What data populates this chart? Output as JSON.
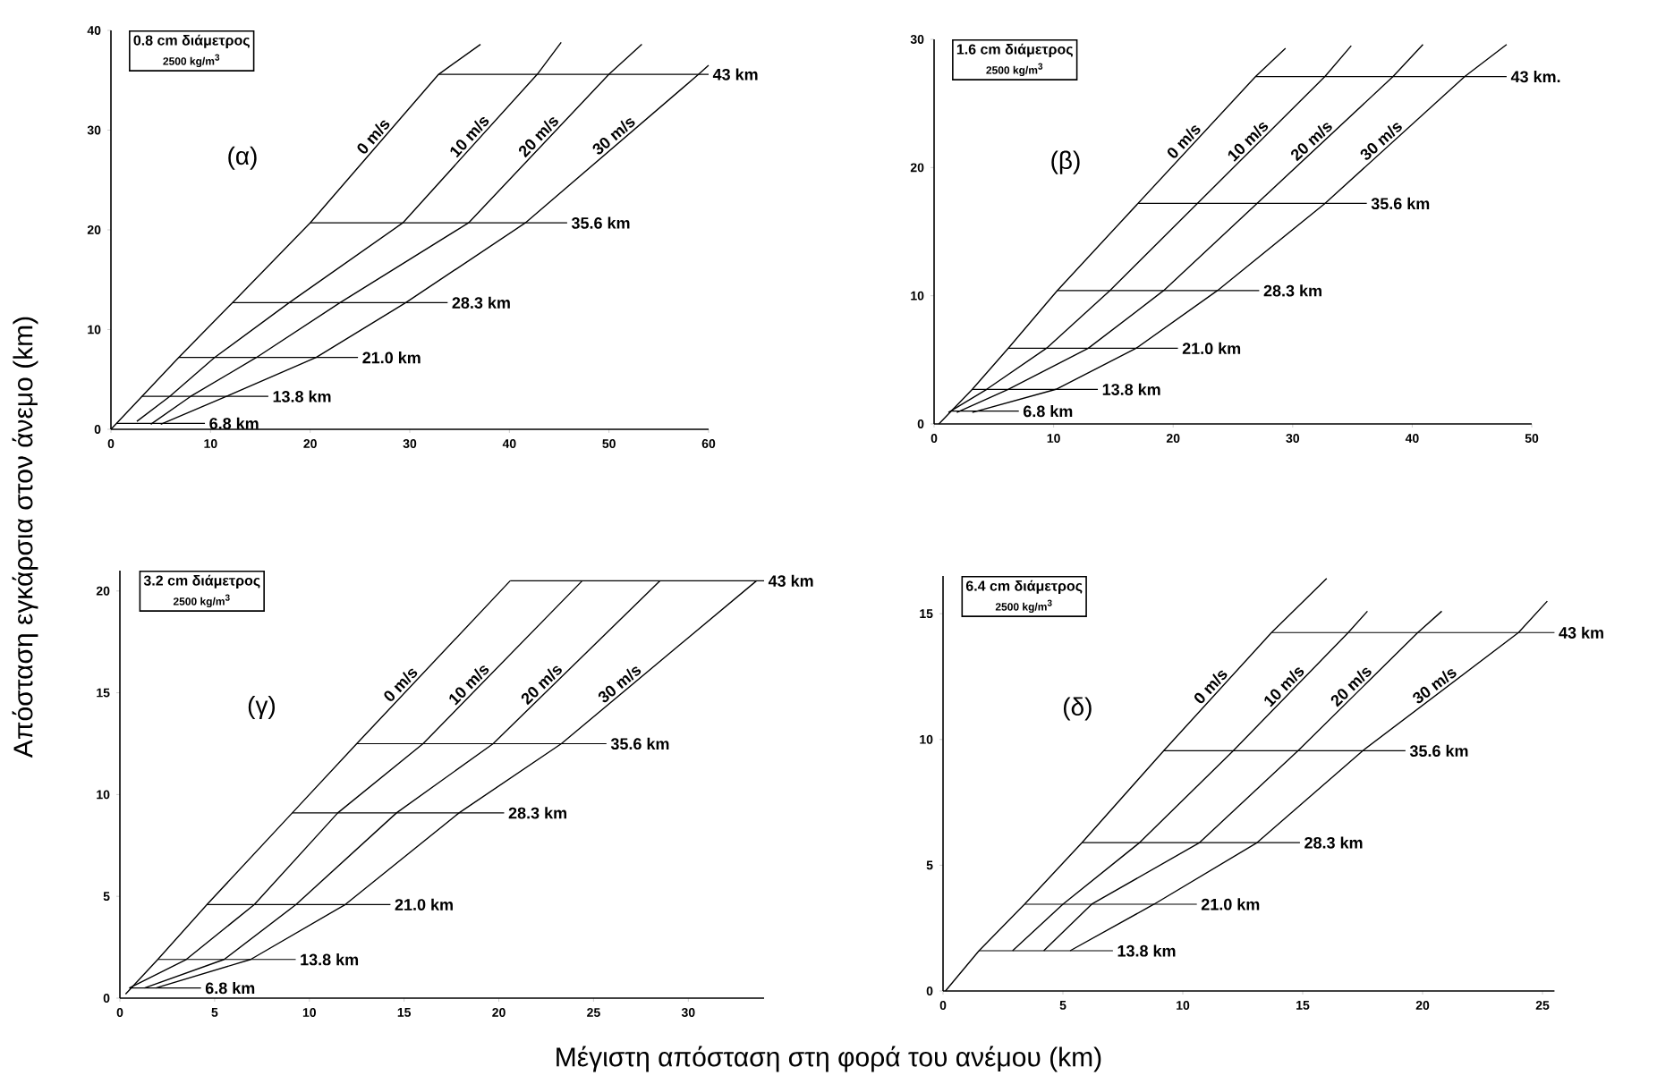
{
  "chart_data": [
    {
      "type": "line",
      "ylabel": "Απόσταση εγκάρσια στον άνεμο (km)",
      "annotations": [
        "0.8 cm διάμετρος",
        "2500 kg/m$^{3}$",
        "(α)"
      ],
      "xlim": [
        0,
        60
      ],
      "ylim": [
        0,
        40
      ],
      "xticks": [
        0,
        10,
        20,
        30,
        40,
        50,
        60
      ],
      "yticks": [
        0,
        10,
        20,
        30,
        40
      ],
      "series": [
        {
          "name": "0 m/s",
          "color": "#000000",
          "x": [
            0,
            6.8,
            12.2,
            20,
            32.9,
            37.1
          ],
          "values": [
            0,
            7.2,
            12.7,
            20.7,
            35.6,
            38.6
          ]
        },
        {
          "name": "10 m/s",
          "color": "#000000",
          "x": [
            2.6,
            5.9,
            10.4,
            17.9,
            29.3,
            42.8,
            45.2
          ],
          "values": [
            0.8,
            3.3,
            7.2,
            12.7,
            20.7,
            35.6,
            38.8
          ]
        },
        {
          "name": "20 m/s",
          "color": "#000000",
          "x": [
            4.0,
            8.0,
            14.6,
            23.0,
            35.9,
            50,
            53.3
          ],
          "values": [
            0.5,
            3.3,
            7.2,
            12.7,
            20.7,
            35.6,
            38.6
          ]
        },
        {
          "name": "30 m/s",
          "color": "#000000",
          "x": [
            5.0,
            11.6,
            20.6,
            29.6,
            41.6,
            59.0,
            60
          ],
          "values": [
            0.5,
            3.3,
            7.2,
            12.7,
            20.7,
            35.6,
            36.5
          ]
        }
      ],
      "ref_lines": [
        {
          "axis": "y",
          "value": 0.6,
          "label": "6.8 km"
        },
        {
          "axis": "y",
          "value": 3.3,
          "label": "13.8 km"
        },
        {
          "axis": "y",
          "value": 7.2,
          "label": "21.0 km"
        },
        {
          "axis": "y",
          "value": 12.7,
          "label": "28.3 km"
        },
        {
          "axis": "y",
          "value": 20.7,
          "label": "35.6 km"
        },
        {
          "axis": "y",
          "value": 35.6,
          "label": "43 km"
        }
      ]
    },
    {
      "type": "line",
      "annotations": [
        "1.6 cm διάμετρος",
        "2500 kg/m$^{3}$",
        "(β)"
      ],
      "xlim": [
        0,
        50
      ],
      "ylim": [
        0,
        30
      ],
      "xticks": [
        0,
        10,
        20,
        30,
        40,
        50
      ],
      "yticks": [
        0,
        10,
        20,
        30
      ],
      "series": [
        {
          "name": "0 m/s",
          "color": "#000000",
          "x": [
            0.4,
            3.2,
            6.2,
            10.3,
            26.9,
            29.4
          ],
          "values": [
            0,
            2.7,
            5.9,
            10.4,
            27.1,
            29.3
          ]
        },
        {
          "name": "10 m/s",
          "color": "#000000",
          "x": [
            1.2,
            4.4,
            9.4,
            14.7,
            32.7,
            34.9
          ],
          "values": [
            0.9,
            2.7,
            5.9,
            10.4,
            27.1,
            29.5
          ]
        },
        {
          "name": "20 m/s",
          "color": "#000000",
          "x": [
            1.9,
            6.2,
            12.9,
            19.2,
            38.4,
            40.9
          ],
          "values": [
            0.9,
            2.7,
            5.9,
            10.4,
            27.1,
            29.6
          ]
        },
        {
          "name": "30 m/s",
          "color": "#000000",
          "x": [
            3.2,
            10.2,
            16.9,
            23.7,
            32.7,
            44.4,
            47.9
          ],
          "values": [
            0.9,
            2.7,
            5.9,
            10.4,
            17.2,
            27.1,
            29.6
          ]
        }
      ],
      "ref_lines": [
        {
          "axis": "y",
          "value": 1.0,
          "label": "6.8 km"
        },
        {
          "axis": "y",
          "value": 2.7,
          "label": "13.8 km"
        },
        {
          "axis": "y",
          "value": 5.9,
          "label": "21.0 km"
        },
        {
          "axis": "y",
          "value": 10.4,
          "label": "28.3 km"
        },
        {
          "axis": "y",
          "value": 17.2,
          "label": "35.6 km"
        },
        {
          "axis": "y",
          "value": 27.1,
          "label": "43 km."
        }
      ]
    },
    {
      "type": "line",
      "xlabel": "Μέγιστη απόσταση στη φορά του ανέμου (km)",
      "annotations": [
        "3.2 cm διάμετρος",
        "2500 kg/m$^{3}$",
        "(γ)"
      ],
      "xlim": [
        0,
        34
      ],
      "ylim": [
        0,
        21
      ],
      "xticks": [
        0,
        5,
        10,
        15,
        20,
        25,
        30
      ],
      "yticks": [
        0,
        5,
        10,
        15,
        20
      ],
      "series": [
        {
          "name": "0 m/s",
          "color": "#000000",
          "x": [
            0.3,
            2.0,
            4.6,
            9.1,
            12.5,
            20.6
          ],
          "values": [
            0.2,
            1.9,
            4.6,
            9.1,
            12.5,
            20.5
          ]
        },
        {
          "name": "10 m/s",
          "color": "#000000",
          "x": [
            0.5,
            3.5,
            7.1,
            11.5,
            16.0,
            24.4
          ],
          "values": [
            0.5,
            1.9,
            4.6,
            9.1,
            12.5,
            20.5
          ]
        },
        {
          "name": "20 m/s",
          "color": "#000000",
          "x": [
            1.3,
            5.5,
            9.3,
            14.6,
            19.7,
            28.5
          ],
          "values": [
            0.5,
            1.9,
            4.6,
            9.1,
            12.5,
            20.5
          ]
        },
        {
          "name": "30 m/s",
          "color": "#000000",
          "x": [
            1.9,
            6.9,
            11.9,
            17.9,
            23.3,
            33.6
          ],
          "values": [
            0.5,
            1.9,
            4.6,
            9.1,
            12.5,
            20.5
          ]
        }
      ],
      "ref_lines": [
        {
          "axis": "y",
          "value": 0.5,
          "label": "6.8 km"
        },
        {
          "axis": "y",
          "value": 1.9,
          "label": "13.8 km"
        },
        {
          "axis": "y",
          "value": 4.6,
          "label": "21.0 km"
        },
        {
          "axis": "y",
          "value": 9.1,
          "label": "28.3 km"
        },
        {
          "axis": "y",
          "value": 12.5,
          "label": "35.6 km"
        },
        {
          "axis": "y",
          "value": 20.5,
          "label": "43 km"
        }
      ]
    },
    {
      "type": "line",
      "annotations": [
        "6.4 cm διάμετρος",
        "2500 kg/m$^{3}$",
        "(δ)"
      ],
      "xlim": [
        0,
        25.5
      ],
      "ylim": [
        0,
        16.5
      ],
      "xticks": [
        0,
        5,
        10,
        15,
        20,
        25
      ],
      "yticks": [
        0,
        5,
        10,
        15
      ],
      "series": [
        {
          "name": "0 m/s",
          "color": "#000000",
          "x": [
            0.1,
            1.5,
            3.4,
            5.8,
            9.2,
            13.7,
            16.0
          ],
          "values": [
            0,
            1.6,
            3.45,
            5.9,
            9.55,
            14.25,
            16.4
          ]
        },
        {
          "name": "10 m/s",
          "color": "#000000",
          "x": [
            2.9,
            5.0,
            8.2,
            12.1,
            16.9,
            17.7
          ],
          "values": [
            1.6,
            3.45,
            5.9,
            9.55,
            14.25,
            15.1
          ]
        },
        {
          "name": "20 m/s",
          "color": "#000000",
          "x": [
            4.2,
            6.2,
            10.7,
            14.8,
            19.8,
            20.8
          ],
          "values": [
            1.6,
            3.45,
            5.9,
            9.55,
            14.25,
            15.1
          ]
        },
        {
          "name": "30 m/s",
          "color": "#000000",
          "x": [
            5.3,
            8.8,
            13.1,
            17.5,
            24.0,
            25.2
          ],
          "values": [
            1.6,
            3.45,
            5.9,
            9.55,
            14.25,
            15.5
          ]
        }
      ],
      "ref_lines": [
        {
          "axis": "y",
          "value": 1.6,
          "label": "13.8 km"
        },
        {
          "axis": "y",
          "value": 3.45,
          "label": "21.0 km"
        },
        {
          "axis": "y",
          "value": 5.9,
          "label": "28.3 km"
        },
        {
          "axis": "y",
          "value": 9.55,
          "label": "35.6 km"
        },
        {
          "axis": "y",
          "value": 14.25,
          "label": "43 km"
        }
      ]
    }
  ]
}
